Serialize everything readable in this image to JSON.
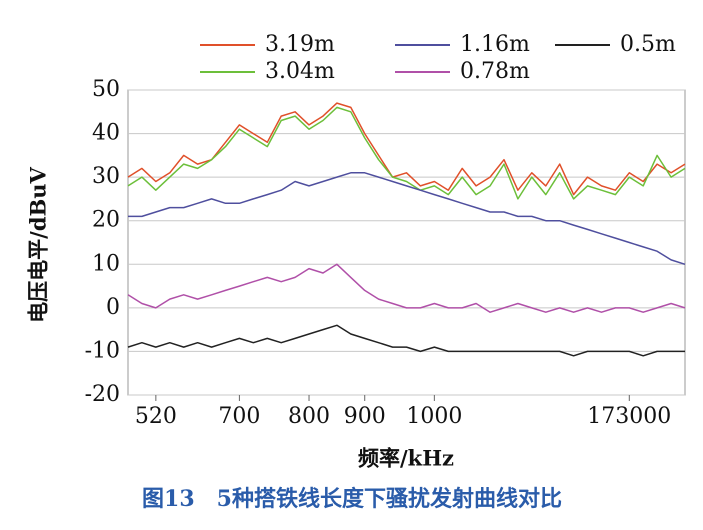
{
  "chart_data": {
    "type": "line",
    "x_label": "频率/kHz",
    "y_label": "电压电平/dBuV",
    "caption": "图13　5种搭铁线长度下骚扰发射曲线对比",
    "legend": "top",
    "grid": true,
    "ylim": [
      -20,
      50
    ],
    "yticks": [
      -20,
      -10,
      0,
      10,
      20,
      30,
      40,
      50
    ],
    "categories": [
      null,
      null,
      "520",
      null,
      null,
      null,
      null,
      null,
      "700",
      null,
      null,
      null,
      null,
      "800",
      null,
      null,
      null,
      "900",
      null,
      null,
      null,
      null,
      "1000",
      null,
      null,
      null,
      null,
      null,
      null,
      null,
      null,
      null,
      null,
      null,
      null,
      null,
      "173000",
      null,
      null,
      null,
      null
    ],
    "series": [
      {
        "name": "3.19m",
        "color": "#e0502a",
        "values": [
          30,
          32,
          29,
          31,
          35,
          33,
          34,
          38,
          42,
          40,
          38,
          44,
          45,
          42,
          44,
          47,
          46,
          40,
          35,
          30,
          31,
          28,
          29,
          27,
          32,
          28,
          30,
          34,
          27,
          31,
          28,
          33,
          26,
          30,
          28,
          27,
          31,
          29,
          33,
          31,
          33
        ]
      },
      {
        "name": "3.04m",
        "color": "#6cbf3a",
        "values": [
          28,
          30,
          27,
          30,
          33,
          32,
          34,
          37,
          41,
          39,
          37,
          43,
          44,
          41,
          43,
          46,
          45,
          39,
          34,
          30,
          29,
          27,
          28,
          26,
          30,
          26,
          28,
          33,
          25,
          30,
          26,
          31,
          25,
          28,
          27,
          26,
          30,
          28,
          35,
          30,
          32
        ]
      },
      {
        "name": "1.16m",
        "color": "#4f4f9e",
        "values": [
          21,
          21,
          22,
          23,
          23,
          24,
          25,
          24,
          24,
          25,
          26,
          27,
          29,
          28,
          29,
          30,
          31,
          31,
          30,
          29,
          28,
          27,
          26,
          25,
          24,
          23,
          22,
          22,
          21,
          21,
          20,
          20,
          19,
          18,
          17,
          16,
          15,
          14,
          13,
          11,
          10
        ]
      },
      {
        "name": "0.78m",
        "color": "#b050a8",
        "values": [
          3,
          1,
          0,
          2,
          3,
          2,
          3,
          4,
          5,
          6,
          7,
          6,
          7,
          9,
          8,
          10,
          7,
          4,
          2,
          1,
          0,
          0,
          1,
          0,
          0,
          1,
          -1,
          0,
          1,
          0,
          -1,
          0,
          -1,
          0,
          -1,
          0,
          0,
          -1,
          0,
          1,
          0
        ]
      },
      {
        "name": "0.5m",
        "color": "#222222",
        "values": [
          -9,
          -8,
          -9,
          -8,
          -9,
          -8,
          -9,
          -8,
          -7,
          -8,
          -7,
          -8,
          -7,
          -6,
          -5,
          -4,
          -6,
          -7,
          -8,
          -9,
          -9,
          -10,
          -9,
          -10,
          -10,
          -10,
          -10,
          -10,
          -10,
          -10,
          -10,
          -10,
          -11,
          -10,
          -10,
          -10,
          -10,
          -11,
          -10,
          -10,
          -10
        ]
      }
    ]
  }
}
